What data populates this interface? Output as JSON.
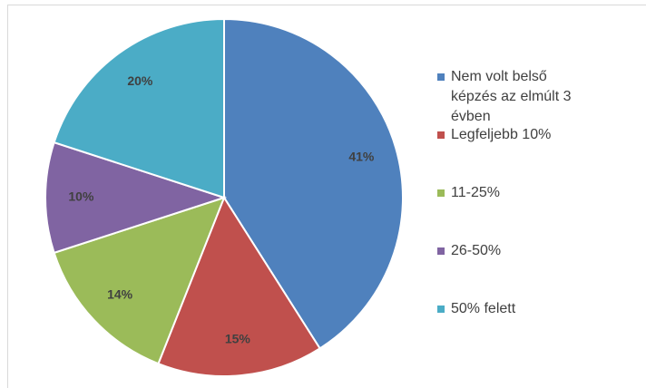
{
  "chart_data": {
    "type": "pie",
    "categories": [
      "Nem volt belső képzés az elmúlt 3 évben",
      "Legfeljebb 10%",
      "11-25%",
      "26-50%",
      "50% felett"
    ],
    "values": [
      41,
      15,
      14,
      10,
      20
    ],
    "value_labels": [
      "41%",
      "15%",
      "14%",
      "10%",
      "20%"
    ],
    "colors": [
      "#4f81bd",
      "#c0504d",
      "#9bbb59",
      "#8064a2",
      "#4bacc6"
    ],
    "legend": "right"
  }
}
